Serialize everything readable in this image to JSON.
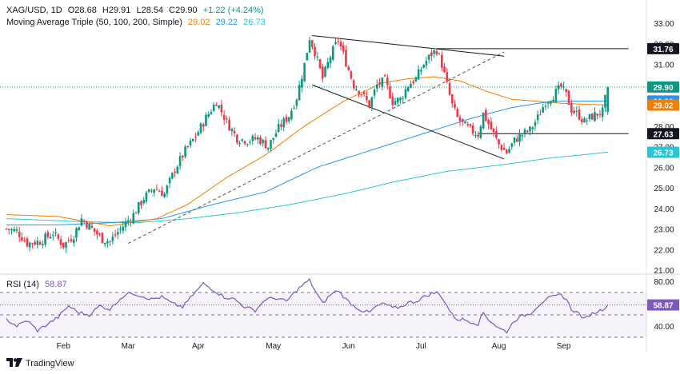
{
  "header": {
    "symbol": "XAG/USD, 1D",
    "open": "O28.68",
    "high": "H29.91",
    "low": "L28.54",
    "close": "C29.90",
    "change": "+1.22 (+4.24%)",
    "ma_label": "Moving Average Triple (50, 100, 200, Simple)",
    "ma50": "29.02",
    "ma100": "29.22",
    "ma200": "26.73"
  },
  "rsi_header": {
    "label": "RSI (14)",
    "value": "58.87"
  },
  "branding": {
    "text": "TradingView"
  },
  "colors": {
    "up": "#089981",
    "down": "#f23645",
    "ma50": "#f57c00",
    "ma100": "#2196f3",
    "ma200": "#26c6da",
    "rsi": "#7e57c2"
  },
  "chart_data": [
    {
      "type": "candlestick",
      "title": "XAG/USD, 1D",
      "y_ticks": [
        "33.00",
        "32.00",
        "31.00",
        "30.00",
        "29.00",
        "28.00",
        "27.00",
        "26.00",
        "25.00",
        "24.00",
        "23.00",
        "22.00",
        "21.00"
      ],
      "ylim": [
        21,
        33
      ],
      "x_ticks": [
        "Feb",
        "Mar",
        "Apr",
        "May",
        "Jun",
        "Jul",
        "Aug",
        "Sep"
      ],
      "price_labels": [
        {
          "value": 31.76,
          "text": "31.76",
          "style": "dark"
        },
        {
          "value": 29.9,
          "text": "29.90",
          "style": "green"
        },
        {
          "value": 29.22,
          "text": "29.22",
          "style": "blue"
        },
        {
          "value": 29.02,
          "text": "29.02",
          "style": "orange"
        },
        {
          "value": 27.63,
          "text": "27.63",
          "style": "dark"
        },
        {
          "value": 26.73,
          "text": "26.73",
          "style": "cyan"
        }
      ],
      "anchors": [
        [
          0,
          23.0
        ],
        [
          4,
          22.9
        ],
        [
          8,
          22.3
        ],
        [
          13,
          22.4
        ],
        [
          18,
          22.8
        ],
        [
          22,
          22.2
        ],
        [
          26,
          22.7
        ],
        [
          29,
          23.5
        ],
        [
          33,
          23.0
        ],
        [
          37,
          22.5
        ],
        [
          40,
          22.4
        ],
        [
          44,
          23.0
        ],
        [
          49,
          23.7
        ],
        [
          53,
          24.5
        ],
        [
          57,
          25.0
        ],
        [
          61,
          24.7
        ],
        [
          65,
          25.9
        ],
        [
          69,
          26.8
        ],
        [
          73,
          27.5
        ],
        [
          77,
          28.4
        ],
        [
          81,
          29.2
        ],
        [
          85,
          28.2
        ],
        [
          89,
          27.4
        ],
        [
          93,
          27.3
        ],
        [
          97,
          27.4
        ],
        [
          101,
          27.0
        ],
        [
          105,
          27.9
        ],
        [
          109,
          28.5
        ],
        [
          112,
          29.4
        ],
        [
          115,
          31.0
        ],
        [
          117,
          32.3
        ],
        [
          119,
          31.6
        ],
        [
          122,
          30.3
        ],
        [
          125,
          31.4
        ],
        [
          128,
          32.2
        ],
        [
          131,
          31.1
        ],
        [
          134,
          30.0
        ],
        [
          137,
          29.6
        ],
        [
          140,
          29.0
        ],
        [
          143,
          30.0
        ],
        [
          146,
          30.2
        ],
        [
          149,
          29.2
        ],
        [
          152,
          29.3
        ],
        [
          155,
          30.0
        ],
        [
          158,
          30.3
        ],
        [
          161,
          31.0
        ],
        [
          164,
          31.5
        ],
        [
          166,
          31.7
        ],
        [
          168,
          31.0
        ],
        [
          170,
          30.0
        ],
        [
          172,
          29.0
        ],
        [
          174,
          28.4
        ],
        [
          176,
          28.1
        ],
        [
          179,
          27.8
        ],
        [
          182,
          27.6
        ],
        [
          184,
          28.6
        ],
        [
          186,
          28.1
        ],
        [
          188,
          27.6
        ],
        [
          190,
          27.1
        ],
        [
          193,
          26.7
        ],
        [
          196,
          27.3
        ],
        [
          199,
          27.6
        ],
        [
          202,
          27.8
        ],
        [
          205,
          28.4
        ],
        [
          208,
          29.2
        ],
        [
          211,
          29.5
        ],
        [
          214,
          29.9
        ],
        [
          216,
          29.5
        ],
        [
          218,
          28.8
        ],
        [
          221,
          28.5
        ],
        [
          223,
          28.2
        ],
        [
          225,
          28.4
        ],
        [
          228,
          28.6
        ],
        [
          230,
          28.7
        ],
        [
          232,
          29.9
        ]
      ],
      "ma50": [
        [
          0,
          23.7
        ],
        [
          20,
          23.6
        ],
        [
          40,
          23.15
        ],
        [
          58,
          23.5
        ],
        [
          70,
          24.2
        ],
        [
          85,
          25.5
        ],
        [
          100,
          26.6
        ],
        [
          115,
          28.0
        ],
        [
          130,
          29.2
        ],
        [
          145,
          30.1
        ],
        [
          155,
          30.3
        ],
        [
          165,
          30.4
        ],
        [
          175,
          30.2
        ],
        [
          185,
          29.7
        ],
        [
          195,
          29.3
        ],
        [
          205,
          29.2
        ],
        [
          215,
          29.1
        ],
        [
          232,
          29.02
        ]
      ],
      "ma100": [
        [
          0,
          23.2
        ],
        [
          20,
          23.2
        ],
        [
          40,
          23.3
        ],
        [
          60,
          23.5
        ],
        [
          80,
          24.2
        ],
        [
          100,
          24.8
        ],
        [
          120,
          26.0
        ],
        [
          140,
          26.8
        ],
        [
          160,
          27.6
        ],
        [
          180,
          28.4
        ],
        [
          195,
          28.9
        ],
        [
          210,
          29.2
        ],
        [
          232,
          29.22
        ]
      ],
      "ma200": [
        [
          0,
          23.5
        ],
        [
          30,
          23.35
        ],
        [
          50,
          23.3
        ],
        [
          70,
          23.5
        ],
        [
          90,
          23.8
        ],
        [
          110,
          24.2
        ],
        [
          130,
          24.7
        ],
        [
          150,
          25.3
        ],
        [
          170,
          25.8
        ],
        [
          190,
          26.1
        ],
        [
          210,
          26.45
        ],
        [
          232,
          26.73
        ]
      ],
      "trendlines": [
        {
          "name": "descending-upper",
          "from": [
            118,
            32.4
          ],
          "to": [
            192,
            31.4
          ],
          "style": "solid"
        },
        {
          "name": "descending-lower",
          "from": [
            118,
            30.0
          ],
          "to": [
            192,
            26.4
          ],
          "style": "solid"
        },
        {
          "name": "ascending-support",
          "from": [
            47,
            22.3
          ],
          "to": [
            192,
            31.6
          ],
          "style": "dashed"
        },
        {
          "name": "resistance-31-76",
          "from": [
            166,
            31.76
          ],
          "to": [
            240,
            31.76
          ],
          "style": "solid"
        },
        {
          "name": "support-27-63",
          "from": [
            182,
            27.63
          ],
          "to": [
            240,
            27.63
          ],
          "style": "solid"
        }
      ],
      "last_price": 29.9,
      "month_index": [
        22,
        47,
        74,
        103,
        132,
        160,
        190,
        215
      ]
    },
    {
      "type": "line",
      "title": "RSI (14)",
      "y_ticks": [
        "80.00",
        "40.00"
      ],
      "ylim": [
        30,
        85
      ],
      "levels": [
        70,
        50,
        30
      ],
      "value_label": "58.87",
      "anchors": [
        [
          0,
          46
        ],
        [
          4,
          40
        ],
        [
          8,
          45
        ],
        [
          12,
          36
        ],
        [
          16,
          42
        ],
        [
          20,
          48
        ],
        [
          24,
          58
        ],
        [
          28,
          52
        ],
        [
          32,
          50
        ],
        [
          36,
          58
        ],
        [
          40,
          55
        ],
        [
          44,
          65
        ],
        [
          48,
          70
        ],
        [
          52,
          67
        ],
        [
          56,
          64
        ],
        [
          60,
          66
        ],
        [
          64,
          60
        ],
        [
          68,
          57
        ],
        [
          72,
          68
        ],
        [
          76,
          78
        ],
        [
          80,
          72
        ],
        [
          84,
          66
        ],
        [
          88,
          64
        ],
        [
          92,
          57
        ],
        [
          96,
          54
        ],
        [
          100,
          64
        ],
        [
          104,
          65
        ],
        [
          108,
          62
        ],
        [
          112,
          72
        ],
        [
          115,
          78
        ],
        [
          117,
          81
        ],
        [
          119,
          72
        ],
        [
          122,
          60
        ],
        [
          125,
          68
        ],
        [
          128,
          72
        ],
        [
          131,
          64
        ],
        [
          134,
          58
        ],
        [
          137,
          54
        ],
        [
          140,
          52
        ],
        [
          143,
          58
        ],
        [
          146,
          60
        ],
        [
          149,
          56
        ],
        [
          152,
          57
        ],
        [
          155,
          61
        ],
        [
          158,
          62
        ],
        [
          161,
          66
        ],
        [
          164,
          69
        ],
        [
          166,
          70
        ],
        [
          168,
          66
        ],
        [
          170,
          58
        ],
        [
          172,
          50
        ],
        [
          174,
          46
        ],
        [
          176,
          46
        ],
        [
          179,
          44
        ],
        [
          182,
          42
        ],
        [
          184,
          52
        ],
        [
          186,
          46
        ],
        [
          188,
          42
        ],
        [
          190,
          38
        ],
        [
          193,
          35
        ],
        [
          196,
          45
        ],
        [
          199,
          49
        ],
        [
          202,
          51
        ],
        [
          205,
          58
        ],
        [
          208,
          64
        ],
        [
          211,
          66
        ],
        [
          214,
          68
        ],
        [
          216,
          64
        ],
        [
          218,
          55
        ],
        [
          221,
          51
        ],
        [
          223,
          46
        ],
        [
          225,
          50
        ],
        [
          228,
          53
        ],
        [
          230,
          55
        ],
        [
          232,
          58.87
        ]
      ]
    }
  ]
}
